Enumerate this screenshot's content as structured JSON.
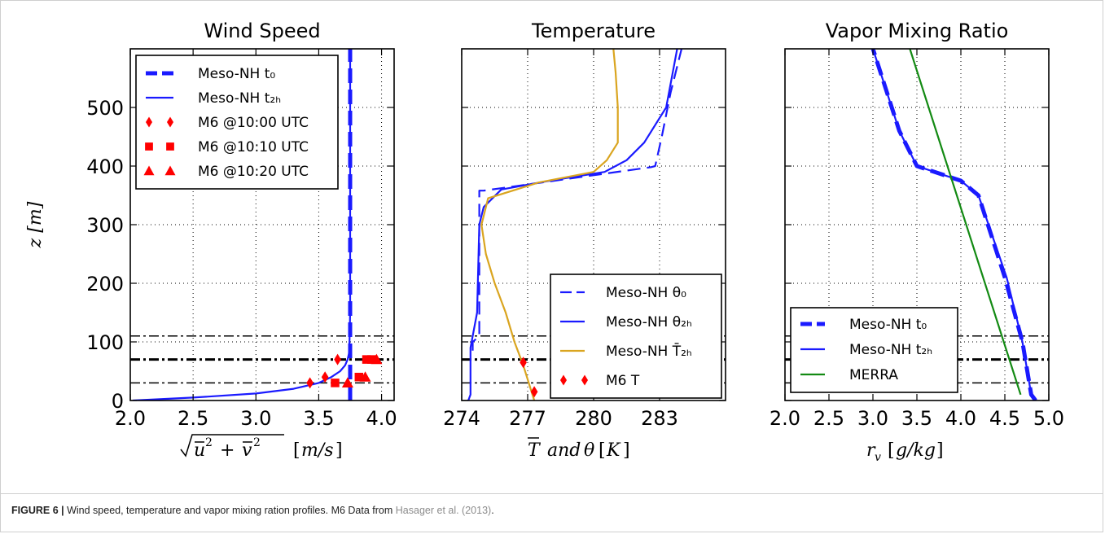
{
  "figure": {
    "caption_label": "FIGURE 6 |",
    "caption_text": " Wind speed, temperature and vapor mixing ration profiles. M6 Data from ",
    "caption_cite": "Hasager et al. (2013)",
    "caption_end": "."
  },
  "colors": {
    "meso_blue": "#1a1aff",
    "temp_orange": "#daa520",
    "merra_green": "#138a13",
    "m6_red": "#ff0000",
    "ref_lines": "#000000"
  },
  "chart_data": [
    {
      "id": "wind",
      "type": "line",
      "title": "Wind Speed",
      "xlabel": "√(ū² + v̄²)  [m/s]",
      "ylabel": "z [m]",
      "xlim": [
        2.0,
        4.1
      ],
      "ylim": [
        0,
        600
      ],
      "xticks": [
        2.0,
        2.5,
        3.0,
        3.5,
        4.0
      ],
      "xtick_labels": [
        "2.0",
        "2.5",
        "3.0",
        "3.5",
        "4.0"
      ],
      "yticks": [
        0,
        100,
        200,
        300,
        400,
        500
      ],
      "ytick_labels": [
        "0",
        "100",
        "200",
        "300",
        "400",
        "500"
      ],
      "grid": true,
      "legend_position": "top-left",
      "hlines": [
        {
          "y": 110,
          "style": "dashdot",
          "weight": "thin"
        },
        {
          "y": 70,
          "style": "dashdot",
          "weight": "thick"
        },
        {
          "y": 30,
          "style": "dashdot",
          "weight": "thin"
        }
      ],
      "series": [
        {
          "name": "Meso-NH t₀",
          "style": "dashed-thick",
          "color": "#1a1aff",
          "x": [
            3.75,
            3.75
          ],
          "y": [
            0,
            600
          ]
        },
        {
          "name": "Meso-NH t₂ₕ",
          "style": "solid",
          "color": "#1a1aff",
          "x": [
            2.02,
            2.5,
            3.0,
            3.3,
            3.5,
            3.6,
            3.67,
            3.71,
            3.73,
            3.74,
            3.745,
            3.75,
            3.75
          ],
          "y": [
            0,
            5,
            12,
            20,
            30,
            40,
            50,
            60,
            70,
            80,
            100,
            150,
            600
          ]
        },
        {
          "name": "M6 @10:00 UTC",
          "marker": "diamond",
          "color": "#ff0000",
          "x": [
            3.43,
            3.55,
            3.65
          ],
          "y": [
            30,
            40,
            70
          ]
        },
        {
          "name": "M6 @10:10 UTC",
          "marker": "square",
          "color": "#ff0000",
          "x": [
            3.63,
            3.82,
            3.88,
            3.92
          ],
          "y": [
            30,
            40,
            70,
            70
          ]
        },
        {
          "name": "M6 @10:20 UTC",
          "marker": "triangle",
          "color": "#ff0000",
          "x": [
            3.73,
            3.87,
            3.96
          ],
          "y": [
            30,
            40,
            70
          ]
        }
      ]
    },
    {
      "id": "temperature",
      "type": "line",
      "title": "Temperature",
      "xlabel": "T̄ and θ [K]",
      "xlim": [
        274,
        286
      ],
      "ylim": [
        0,
        600
      ],
      "xticks": [
        274,
        277,
        280,
        283
      ],
      "xtick_labels": [
        "274",
        "277",
        "280",
        "283"
      ],
      "yticks": [
        0,
        100,
        200,
        300,
        400,
        500
      ],
      "grid": true,
      "legend_position": "bottom-right",
      "hlines": [
        {
          "y": 110,
          "style": "dashdot",
          "weight": "thin"
        },
        {
          "y": 70,
          "style": "dashdot",
          "weight": "thick"
        },
        {
          "y": 30,
          "style": "dashdot",
          "weight": "thin"
        }
      ],
      "series": [
        {
          "name": "Meso-NH θ₀",
          "style": "dashed",
          "color": "#1a1aff",
          "x": [
            274.5,
            274.5,
            274.8,
            274.8,
            275.0,
            282.6,
            282.8,
            283.1,
            283.5,
            284.0
          ],
          "y": [
            85,
            100,
            110,
            358,
            358,
            398,
            400,
            450,
            525,
            600
          ]
        },
        {
          "name": "Meso-NH θ₂ₕ",
          "style": "solid",
          "color": "#1a1aff",
          "x": [
            274.3,
            274.4,
            274.4,
            274.7,
            274.8,
            275.0,
            275.8,
            278.0,
            280.5,
            281.5,
            282.3,
            283.3,
            283.8
          ],
          "y": [
            0,
            10,
            90,
            150,
            300,
            330,
            360,
            375,
            390,
            410,
            440,
            500,
            600
          ]
        },
        {
          "name": "Meso-NH T̄₂ₕ",
          "style": "solid",
          "color": "#daa520",
          "x": [
            277.3,
            276.8,
            276.4,
            276.0,
            275.5,
            275.1,
            274.9,
            275.2,
            277.5,
            280.0,
            280.6,
            281.1,
            281.1,
            281.0,
            280.9
          ],
          "y": [
            0,
            60,
            100,
            150,
            200,
            250,
            300,
            345,
            372,
            390,
            410,
            440,
            500,
            560,
            600
          ]
        },
        {
          "name": "M6 T",
          "marker": "diamond",
          "color": "#ff0000",
          "x": [
            276.8,
            277.3
          ],
          "y": [
            65,
            15
          ]
        }
      ]
    },
    {
      "id": "vapor",
      "type": "line",
      "title": "Vapor Mixing Ratio",
      "xlabel": "r_v [g/kg]",
      "xlim": [
        2.0,
        5.0
      ],
      "ylim": [
        0,
        600
      ],
      "xticks": [
        2.0,
        2.5,
        3.0,
        3.5,
        4.0,
        4.5,
        5.0
      ],
      "xtick_labels": [
        "2.0",
        "2.5",
        "3.0",
        "3.5",
        "4.0",
        "4.5",
        "5.0"
      ],
      "yticks": [
        0,
        100,
        200,
        300,
        400,
        500
      ],
      "grid": true,
      "legend_position": "bottom-left",
      "hlines": [
        {
          "y": 110,
          "style": "dashdot",
          "weight": "thin"
        },
        {
          "y": 70,
          "style": "dashdot",
          "weight": "thick"
        },
        {
          "y": 30,
          "style": "dashdot",
          "weight": "thin"
        }
      ],
      "series": [
        {
          "name": "Meso-NH t₀",
          "style": "dashed-thick",
          "color": "#1a1aff",
          "x": [
            4.85,
            4.8,
            4.7,
            4.5,
            4.2,
            4.0,
            3.8,
            3.6,
            3.5,
            3.3,
            3.0
          ],
          "y": [
            0,
            10,
            100,
            210,
            350,
            375,
            385,
            395,
            400,
            460,
            600
          ]
        },
        {
          "name": "Meso-NH t₂ₕ",
          "style": "solid",
          "color": "#1a1aff",
          "x": [
            4.85,
            4.8,
            4.7,
            4.52,
            4.2,
            4.0,
            3.8,
            3.6,
            3.5,
            3.3,
            3.0
          ],
          "y": [
            0,
            10,
            100,
            210,
            350,
            375,
            385,
            395,
            400,
            460,
            600
          ]
        },
        {
          "name": "MERRA",
          "style": "solid",
          "color": "#138a13",
          "x": [
            4.68,
            3.42
          ],
          "y": [
            10,
            600
          ]
        }
      ]
    }
  ]
}
